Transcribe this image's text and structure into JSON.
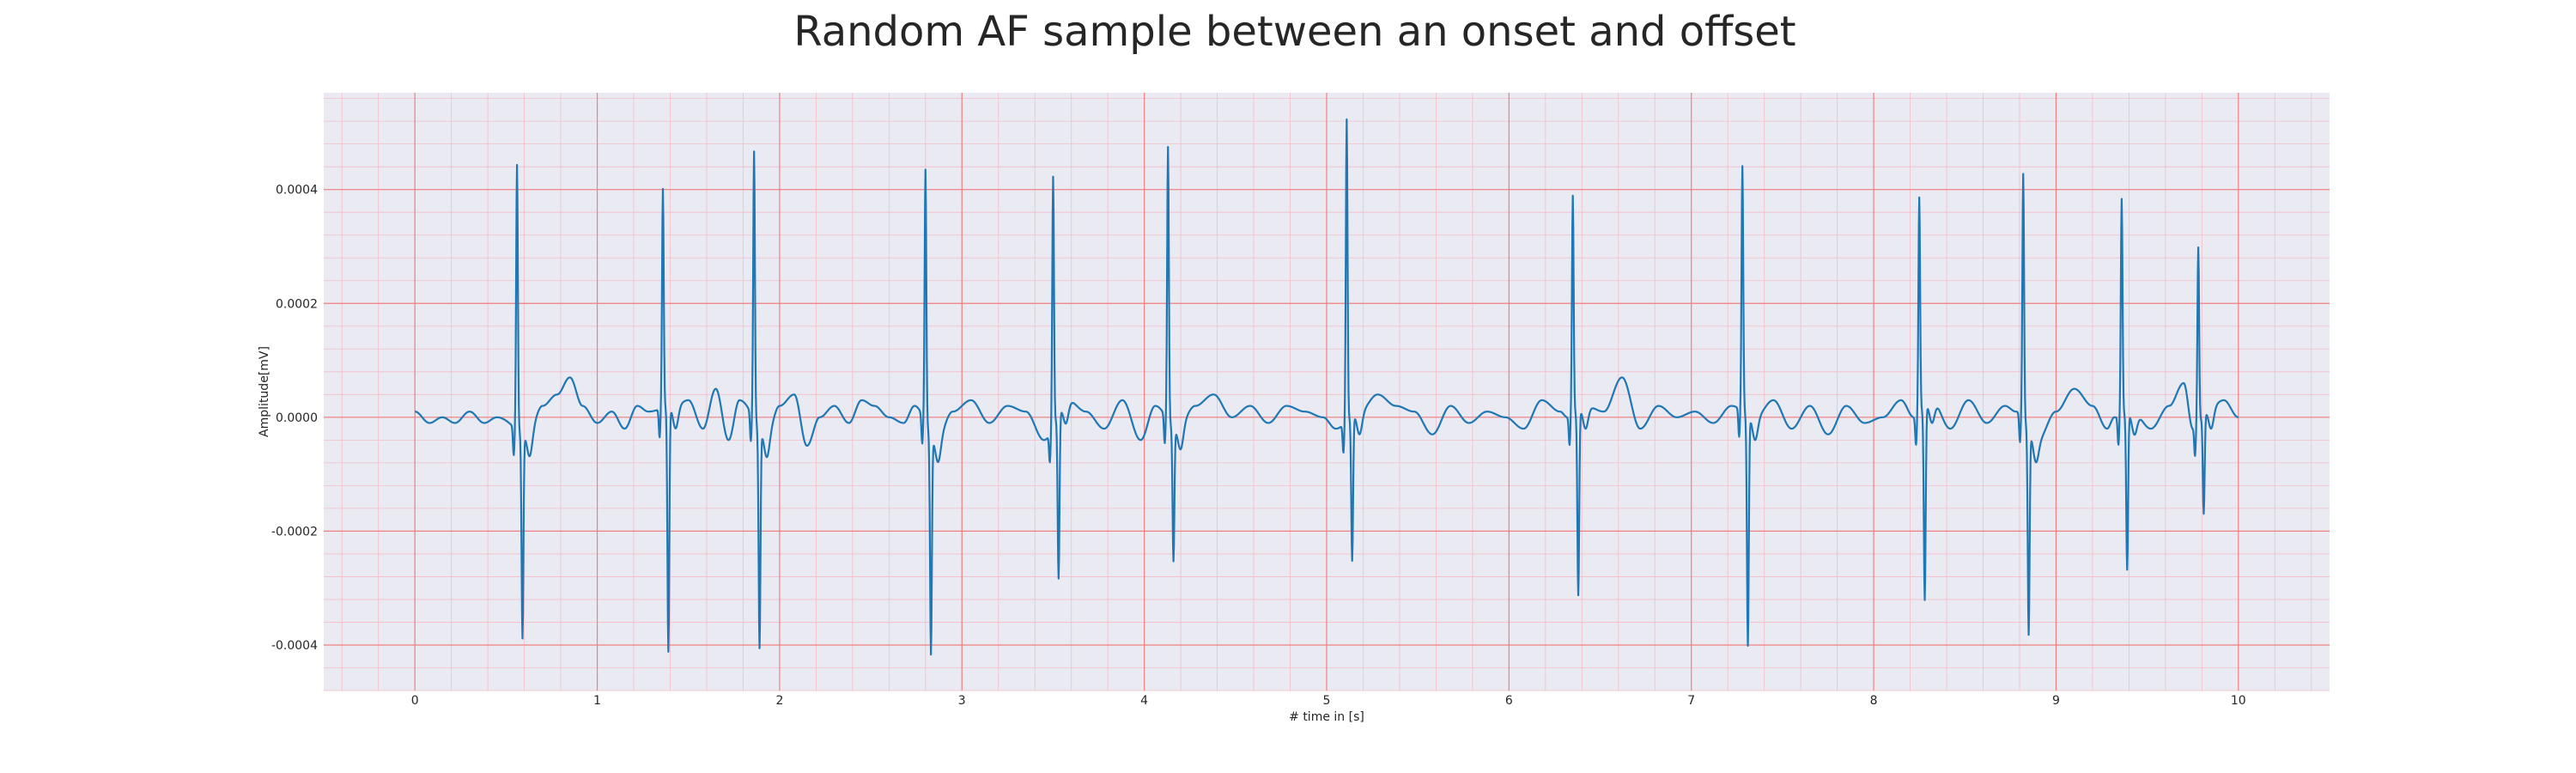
{
  "chart_data": {
    "type": "line",
    "title": "Random AF sample between an onset and offset",
    "xlabel": "# time in [s]",
    "ylabel": "Amplitude[mV]",
    "xlim": [
      -0.5,
      10.5
    ],
    "ylim": [
      -0.00048,
      0.00057
    ],
    "x_ticks": [
      0,
      1,
      2,
      3,
      4,
      5,
      6,
      7,
      8,
      9,
      10
    ],
    "x_tick_labels": [
      "0",
      "1",
      "2",
      "3",
      "4",
      "5",
      "6",
      "7",
      "8",
      "9",
      "10"
    ],
    "y_ticks": [
      -0.0004,
      -0.0002,
      0.0,
      0.0002,
      0.0004
    ],
    "y_tick_labels": [
      "-0.0004",
      "-0.0002",
      "0.0000",
      "0.0002",
      "0.0004"
    ],
    "grid": true,
    "minor_grid": true,
    "background_color": "#eaeaf2",
    "major_grid_color": "#f08080",
    "minor_grid_color": "#f4bcc8",
    "series": [
      {
        "color": "#1f77b4",
        "baseline": {
          "x": [
            0.0,
            0.08,
            0.15,
            0.22,
            0.3,
            0.38,
            0.45,
            0.62,
            0.7,
            0.78,
            0.85,
            0.92,
            1.0,
            1.08,
            1.15,
            1.22,
            1.28,
            1.42,
            1.5,
            1.58,
            1.65,
            1.72,
            1.78,
            1.93,
            2.0,
            2.08,
            2.15,
            2.22,
            2.3,
            2.38,
            2.45,
            2.52,
            2.6,
            2.68,
            2.74,
            2.86,
            2.95,
            3.05,
            3.15,
            3.25,
            3.35,
            3.45,
            3.58,
            3.68,
            3.78,
            3.88,
            3.98,
            4.06,
            4.18,
            4.28,
            4.38,
            4.48,
            4.58,
            4.68,
            4.78,
            4.88,
            4.98,
            5.05,
            5.18,
            5.28,
            5.38,
            5.48,
            5.58,
            5.68,
            5.78,
            5.88,
            5.98,
            6.08,
            6.18,
            6.28,
            6.32,
            6.42,
            6.52,
            6.62,
            6.72,
            6.82,
            6.92,
            7.02,
            7.12,
            7.22,
            7.35,
            7.45,
            7.55,
            7.65,
            7.75,
            7.85,
            7.95,
            8.05,
            8.15,
            8.22,
            8.32,
            8.42,
            8.52,
            8.62,
            8.72,
            8.78,
            8.9,
            9.0,
            9.1,
            9.2,
            9.28,
            9.32,
            9.42,
            9.52,
            9.62,
            9.7,
            9.75,
            9.85,
            9.92,
            10.0
          ],
          "y": [
            1e-05,
            -1e-05,
            0.0,
            -1e-05,
            1e-05,
            -1e-05,
            0.0,
            -3e-05,
            2e-05,
            4e-05,
            7e-05,
            2e-05,
            -1e-05,
            1e-05,
            -2e-05,
            2e-05,
            1e-05,
            2e-05,
            3e-05,
            -2e-05,
            5e-05,
            -4e-05,
            3e-05,
            -3e-05,
            2e-05,
            4e-05,
            -5e-05,
            0.0,
            2e-05,
            -1e-05,
            3e-05,
            2e-05,
            0.0,
            -1e-05,
            2e-05,
            -4e-05,
            1e-05,
            3e-05,
            -1e-05,
            2e-05,
            1e-05,
            -4e-05,
            3e-05,
            1e-05,
            -2e-05,
            3e-05,
            -4e-05,
            2e-05,
            -2e-05,
            2e-05,
            4e-05,
            0.0,
            2e-05,
            -1e-05,
            2e-05,
            1e-05,
            0.0,
            -2e-05,
            1e-05,
            4e-05,
            2e-05,
            1e-05,
            -3e-05,
            2e-05,
            -1e-05,
            1e-05,
            0.0,
            -2e-05,
            3e-05,
            1e-05,
            0.0,
            2e-05,
            1e-05,
            7e-05,
            -2e-05,
            2e-05,
            0.0,
            1e-05,
            -1e-05,
            2e-05,
            0.0,
            3e-05,
            -2e-05,
            2e-05,
            -3e-05,
            2e-05,
            -1e-05,
            0.0,
            3e-05,
            0.0,
            3e-05,
            -2e-05,
            3e-05,
            -1e-05,
            2e-05,
            1e-05,
            -4e-05,
            1e-05,
            5e-05,
            2e-05,
            -2e-05,
            0.0,
            1e-05,
            -2e-05,
            2e-05,
            6e-05,
            -2e-05,
            2e-05,
            3e-05,
            0.0
          ]
        },
        "beats": [
          {
            "t": 0.56,
            "r": 0.000465,
            "s": -0.00036
          },
          {
            "t": 1.36,
            "r": 0.000385,
            "s": -0.00043
          },
          {
            "t": 1.86,
            "r": 0.00047,
            "s": -0.000385
          },
          {
            "t": 2.8,
            "r": 0.000445,
            "s": -0.000385
          },
          {
            "t": 3.5,
            "r": 0.00044,
            "s": -0.00029
          },
          {
            "t": 4.13,
            "r": 0.00048,
            "s": -0.000235
          },
          {
            "t": 5.11,
            "r": 0.00053,
            "s": -0.000255
          },
          {
            "t": 6.35,
            "r": 0.000385,
            "s": -0.000325
          },
          {
            "t": 7.28,
            "r": 0.00043,
            "s": -0.000405
          },
          {
            "t": 8.25,
            "r": 0.00038,
            "s": -0.00034
          },
          {
            "t": 8.82,
            "r": 0.00043,
            "s": -0.00036
          },
          {
            "t": 9.36,
            "r": 0.00038,
            "s": -0.000275
          },
          {
            "t": 9.78,
            "r": 0.00031,
            "s": -0.000175
          }
        ]
      }
    ]
  }
}
